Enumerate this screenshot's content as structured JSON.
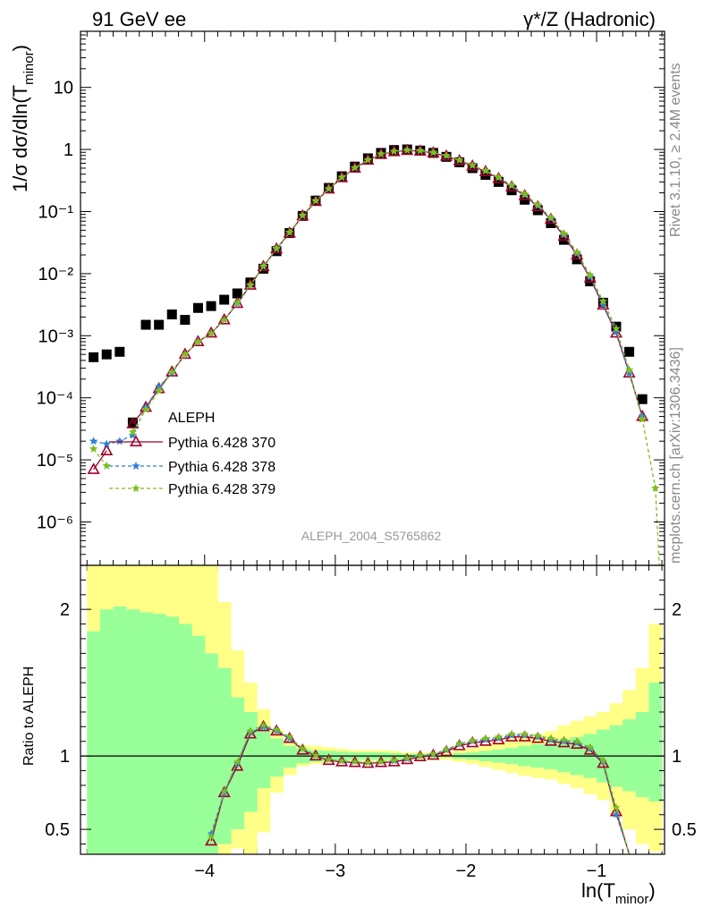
{
  "header": {
    "left_title": "91 GeV ee",
    "right_title": "γ*/Z (Hadronic)"
  },
  "side_labels": {
    "rivet": "Rivet 3.1.10, ≥ 2.4M events",
    "mcplots": "mcplots.cern.ch [arXiv:1306.3436]"
  },
  "colors": {
    "data": "#000000",
    "p370": "#a0002a",
    "p378": "#2f7fd7",
    "p379": "#7cbf1f",
    "band_inner": "#99ff99",
    "band_outer": "#ffff88"
  },
  "chart_data": [
    {
      "type": "scatter",
      "title": "",
      "ylabel": "1/σ  dσ/dln(T_minor)",
      "ylabel_main": "1/σ  dσ/dln(T",
      "ylabel_sub": "minor",
      "ylabel_close": ")",
      "yscale": "log",
      "ylim": [
        2e-07,
        80
      ],
      "xlim": [
        -4.95,
        -0.48
      ],
      "grid": false,
      "legend_position": "middle-left",
      "analysis_label": "ALEPH_2004_S5765862",
      "ytick_labels": [
        "10⁻⁶",
        "10⁻⁵",
        "10⁻⁴",
        "10⁻³",
        "10⁻²",
        "10⁻¹",
        "1",
        "10"
      ],
      "ytick_values": [
        1e-06,
        1e-05,
        0.0001,
        0.001,
        0.01,
        0.1,
        1,
        10
      ],
      "x": [
        -4.85,
        -4.75,
        -4.65,
        -4.55,
        -4.45,
        -4.35,
        -4.25,
        -4.15,
        -4.05,
        -3.95,
        -3.85,
        -3.75,
        -3.65,
        -3.55,
        -3.45,
        -3.35,
        -3.25,
        -3.15,
        -3.05,
        -2.95,
        -2.85,
        -2.75,
        -2.65,
        -2.55,
        -2.45,
        -2.35,
        -2.25,
        -2.15,
        -2.05,
        -1.95,
        -1.85,
        -1.75,
        -1.65,
        -1.55,
        -1.45,
        -1.35,
        -1.25,
        -1.15,
        -1.05,
        -0.95,
        -0.85,
        -0.75,
        -0.65,
        -0.55
      ],
      "series": [
        {
          "name": "ALEPH",
          "marker": "square",
          "values": [
            0.00045,
            0.0005,
            0.00055,
            4e-05,
            0.0015,
            0.0015,
            0.0022,
            0.0018,
            0.0028,
            0.003,
            0.0038,
            0.0048,
            0.0072,
            0.012,
            0.023,
            0.045,
            0.085,
            0.15,
            0.24,
            0.37,
            0.53,
            0.72,
            0.88,
            0.98,
            1.0,
            0.96,
            0.88,
            0.76,
            0.62,
            0.5,
            0.39,
            0.3,
            0.22,
            0.155,
            0.105,
            0.065,
            0.035,
            0.017,
            0.0075,
            0.0034,
            0.0014,
            0.00055,
            9.5e-05,
            null
          ]
        },
        {
          "name": "Pythia 6.428 370",
          "marker": "triangle-open",
          "line": "solid",
          "values": [
            7e-06,
            1.4e-05,
            null,
            3.8e-05,
            7e-05,
            0.00014,
            0.00026,
            0.0005,
            0.0008,
            0.0011,
            0.0018,
            0.0033,
            0.0065,
            0.013,
            0.025,
            0.045,
            0.085,
            0.145,
            0.23,
            0.35,
            0.5,
            0.67,
            0.83,
            0.92,
            0.96,
            0.94,
            0.88,
            0.78,
            0.66,
            0.54,
            0.44,
            0.34,
            0.25,
            0.18,
            0.12,
            0.075,
            0.04,
            0.02,
            0.0085,
            0.0031,
            0.0011,
            0.00025,
            5e-05,
            null
          ]
        },
        {
          "name": "Pythia 6.428 378",
          "marker": "star",
          "line": "dashed",
          "values": [
            2e-05,
            1.8e-05,
            2e-05,
            2.5e-05,
            7e-05,
            0.00015,
            0.00025,
            0.0005,
            0.0008,
            0.0011,
            0.0018,
            0.0033,
            0.0065,
            0.013,
            0.025,
            0.046,
            0.086,
            0.148,
            0.232,
            0.355,
            0.505,
            0.68,
            0.84,
            0.93,
            0.97,
            0.95,
            0.89,
            0.79,
            0.67,
            0.55,
            0.45,
            0.35,
            0.26,
            0.185,
            0.124,
            0.077,
            0.042,
            0.021,
            0.0088,
            0.0032,
            0.00115,
            0.00025,
            5e-05,
            null
          ]
        },
        {
          "name": "Pythia 6.428 379",
          "marker": "star",
          "line": "dashed",
          "values": [
            1.5e-05,
            8e-06,
            null,
            2.8e-05,
            6.5e-05,
            0.00013,
            0.00026,
            0.0005,
            0.0008,
            0.0011,
            0.0018,
            0.0034,
            0.0066,
            0.0132,
            0.0255,
            0.046,
            0.087,
            0.149,
            0.233,
            0.356,
            0.507,
            0.68,
            0.845,
            0.935,
            0.975,
            0.955,
            0.895,
            0.795,
            0.675,
            0.555,
            0.455,
            0.355,
            0.265,
            0.19,
            0.128,
            0.08,
            0.044,
            0.022,
            0.0095,
            0.0036,
            0.0013,
            0.00028,
            4.5e-05,
            3.5e-06
          ]
        }
      ]
    },
    {
      "type": "line",
      "ylabel": "Ratio to ALEPH",
      "xlabel": "ln(T_minor)",
      "xlabel_main": "ln(T",
      "xlabel_sub": "minor",
      "xlabel_close": ")",
      "ylim": [
        0.33,
        2.3
      ],
      "xlim": [
        -4.95,
        -0.48
      ],
      "xtick_labels": [
        "−4",
        "−3",
        "−2",
        "−1"
      ],
      "xtick_values": [
        -4,
        -3,
        -2,
        -1
      ],
      "ytick_labels": [
        "0.5",
        "1",
        "2"
      ],
      "ytick_values": [
        0.5,
        1,
        2
      ],
      "reference_line": 1,
      "band_x_edges": [
        -4.9,
        -4.8,
        -4.7,
        -4.6,
        -4.5,
        -4.4,
        -4.3,
        -4.2,
        -4.1,
        -4.0,
        -3.9,
        -3.8,
        -3.7,
        -3.6,
        -3.5,
        -3.4,
        -3.3,
        -3.2,
        -3.1,
        -3.0,
        -2.9,
        -2.8,
        -2.7,
        -2.6,
        -2.5,
        -2.4,
        -2.3,
        -2.2,
        -2.1,
        -2.0,
        -1.9,
        -1.8,
        -1.7,
        -1.6,
        -1.5,
        -1.4,
        -1.3,
        -1.2,
        -1.1,
        -1.0,
        -0.9,
        -0.8,
        -0.7,
        -0.6,
        -0.5
      ],
      "band_inner_low": [
        0.33,
        0.33,
        0.33,
        0.33,
        0.33,
        0.33,
        0.33,
        0.33,
        0.33,
        0.33,
        0.4,
        0.5,
        0.62,
        0.78,
        0.86,
        0.92,
        0.95,
        0.96,
        0.965,
        0.97,
        0.975,
        0.975,
        0.975,
        0.98,
        0.985,
        0.985,
        0.99,
        0.99,
        0.98,
        0.975,
        0.965,
        0.955,
        0.945,
        0.93,
        0.92,
        0.91,
        0.89,
        0.87,
        0.85,
        0.82,
        0.79,
        0.76,
        0.72,
        0.69
      ],
      "band_inner_high": [
        1.85,
        2.0,
        2.02,
        2.0,
        1.98,
        1.97,
        1.95,
        1.9,
        1.82,
        1.7,
        1.6,
        1.4,
        1.3,
        1.2,
        1.12,
        1.07,
        1.05,
        1.04,
        1.035,
        1.03,
        1.025,
        1.025,
        1.025,
        1.02,
        1.015,
        1.015,
        1.01,
        1.01,
        1.02,
        1.025,
        1.035,
        1.045,
        1.055,
        1.07,
        1.08,
        1.09,
        1.11,
        1.13,
        1.15,
        1.18,
        1.21,
        1.25,
        1.3,
        1.5
      ],
      "band_outer_low": [
        0.33,
        0.33,
        0.33,
        0.33,
        0.33,
        0.33,
        0.33,
        0.33,
        0.33,
        0.33,
        0.33,
        0.37,
        0.33,
        0.48,
        0.75,
        0.87,
        0.93,
        0.945,
        0.955,
        0.96,
        0.965,
        0.965,
        0.965,
        0.97,
        0.975,
        0.975,
        0.98,
        0.975,
        0.96,
        0.945,
        0.925,
        0.905,
        0.885,
        0.865,
        0.85,
        0.84,
        0.81,
        0.78,
        0.74,
        0.7,
        0.6,
        0.5,
        0.4,
        0.35
      ],
      "band_outer_high": [
        2.3,
        2.3,
        2.3,
        2.3,
        2.3,
        2.3,
        2.3,
        2.3,
        2.3,
        2.3,
        2.05,
        1.72,
        1.5,
        1.32,
        1.18,
        1.1,
        1.075,
        1.07,
        1.06,
        1.05,
        1.04,
        1.04,
        1.04,
        1.035,
        1.025,
        1.025,
        1.02,
        1.025,
        1.04,
        1.055,
        1.075,
        1.095,
        1.115,
        1.135,
        1.15,
        1.17,
        1.21,
        1.24,
        1.27,
        1.3,
        1.36,
        1.45,
        1.6,
        1.9
      ],
      "series": [
        {
          "name": "Pythia 6.428 370",
          "values": [
            null,
            null,
            null,
            null,
            null,
            null,
            null,
            null,
            null,
            0.42,
            0.75,
            0.93,
            1.15,
            1.2,
            1.17,
            1.12,
            1.04,
            1.0,
            0.97,
            0.96,
            0.955,
            0.95,
            0.955,
            0.96,
            0.975,
            0.995,
            1.005,
            1.03,
            1.07,
            1.09,
            1.1,
            1.11,
            1.13,
            1.13,
            1.12,
            1.1,
            1.09,
            1.08,
            1.04,
            0.95,
            0.62,
            0.28,
            null,
            null
          ]
        },
        {
          "name": "Pythia 6.428 378",
          "values": [
            null,
            null,
            null,
            null,
            null,
            null,
            null,
            null,
            null,
            0.47,
            0.75,
            0.95,
            1.16,
            1.2,
            1.17,
            1.12,
            1.05,
            1.005,
            0.975,
            0.965,
            0.96,
            0.955,
            0.96,
            0.965,
            0.98,
            1.0,
            1.01,
            1.04,
            1.08,
            1.1,
            1.11,
            1.12,
            1.14,
            1.14,
            1.13,
            1.11,
            1.1,
            1.09,
            1.05,
            0.96,
            0.6,
            0.27,
            null,
            null
          ]
        },
        {
          "name": "Pythia 6.428 379",
          "values": [
            null,
            null,
            null,
            null,
            null,
            null,
            null,
            null,
            null,
            0.45,
            0.76,
            0.96,
            1.17,
            1.21,
            1.18,
            1.13,
            1.05,
            1.005,
            0.975,
            0.965,
            0.96,
            0.955,
            0.96,
            0.97,
            0.985,
            1.005,
            1.015,
            1.045,
            1.085,
            1.105,
            1.12,
            1.13,
            1.15,
            1.15,
            1.14,
            1.12,
            1.11,
            1.1,
            1.06,
            0.97,
            0.65,
            0.3,
            null,
            null
          ]
        }
      ]
    }
  ]
}
